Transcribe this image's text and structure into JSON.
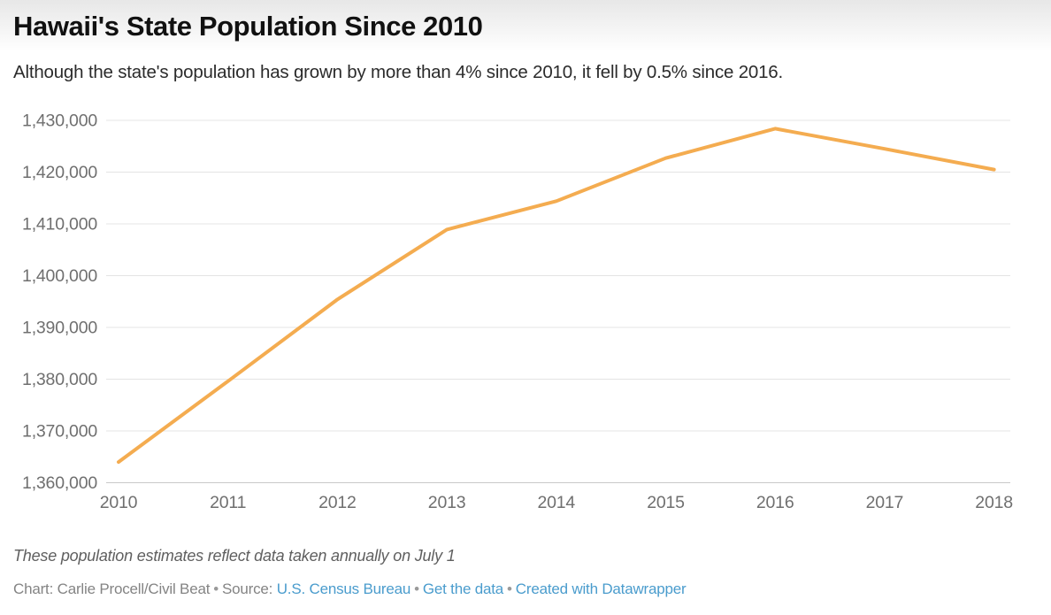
{
  "header": {
    "title": "Hawaii's State Population Since 2010",
    "subtitle": "Although the state's population has grown by more than 4% since 2010, it fell by 0.5% since 2016."
  },
  "chart_data": {
    "type": "line",
    "title": "Hawaii's State Population Since 2010",
    "xlabel": "",
    "ylabel": "",
    "x": [
      2010,
      2011,
      2012,
      2013,
      2014,
      2015,
      2016,
      2017,
      2018
    ],
    "x_tick_labels": [
      "2010",
      "2011",
      "2012",
      "2013",
      "2014",
      "2015",
      "2016",
      "2017",
      "2018"
    ],
    "series": [
      {
        "name": "Hawaii state population",
        "values": [
          1364000,
          1379600,
          1395400,
          1408900,
          1414400,
          1422700,
          1428400,
          1424500,
          1420500
        ]
      }
    ],
    "ylim": [
      1360000,
      1430000
    ],
    "yticks": [
      {
        "value": 1430000,
        "label": "1,430,000"
      },
      {
        "value": 1420000,
        "label": "1,420,000"
      },
      {
        "value": 1410000,
        "label": "1,410,000"
      },
      {
        "value": 1400000,
        "label": "1,400,000"
      },
      {
        "value": 1390000,
        "label": "1,390,000"
      },
      {
        "value": 1380000,
        "label": "1,380,000"
      },
      {
        "value": 1370000,
        "label": "1,370,000"
      },
      {
        "value": 1360000,
        "label": "1,360,000"
      }
    ],
    "grid": "horizontal",
    "legend_position": "none",
    "colors": {
      "line": "#F4AC50",
      "gridline": "#e4e4e4",
      "baseline": "#c9c9c9",
      "tick_label": "#6f6f6f"
    }
  },
  "footer": {
    "note": "These population estimates reflect data taken annually on July 1",
    "credit": "Chart: Carlie Procell/Civil Beat",
    "source_label": "Source:",
    "separator": "•",
    "links": [
      {
        "label": "U.S. Census Bureau"
      },
      {
        "label": "Get the data"
      },
      {
        "label": "Created with Datawrapper"
      }
    ],
    "link_color": "#4a9ccd"
  }
}
